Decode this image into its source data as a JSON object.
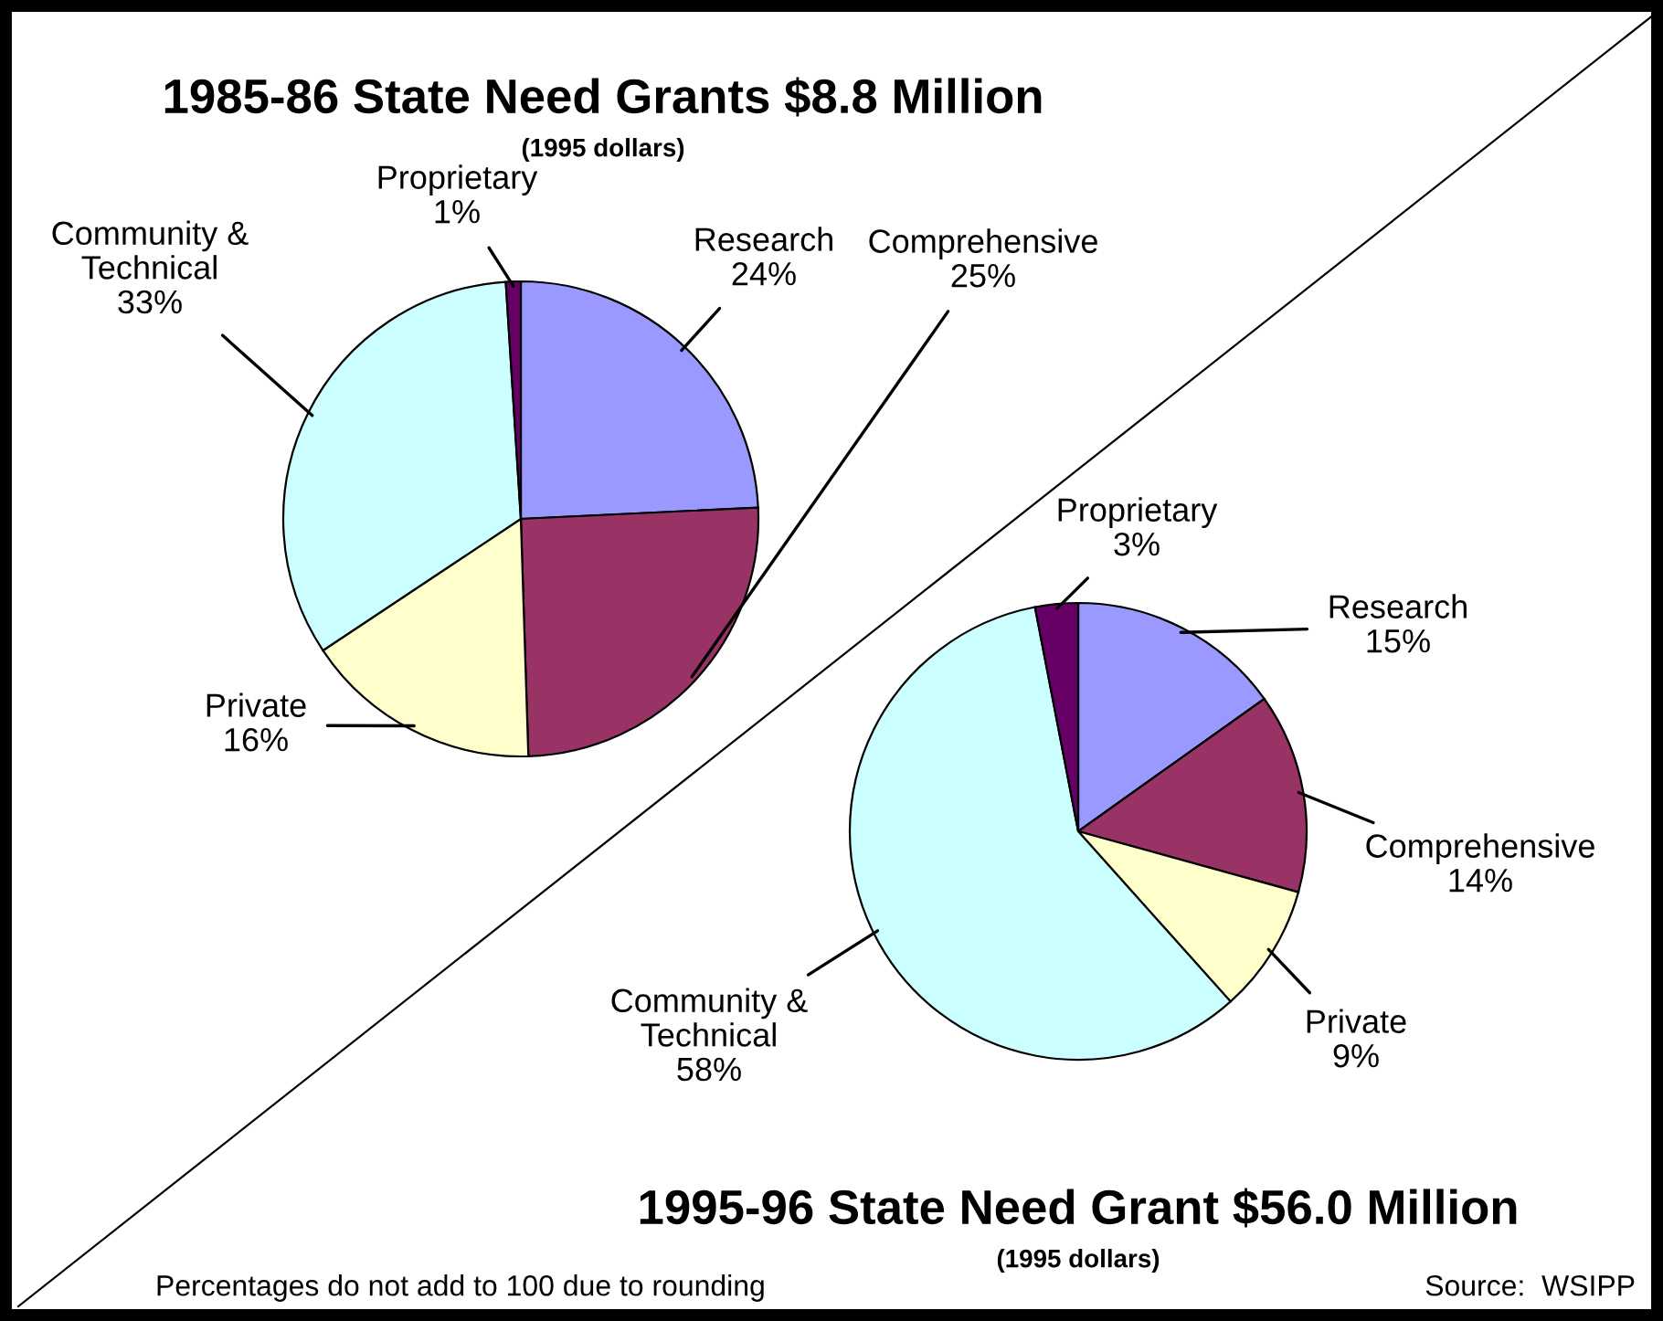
{
  "chart_data": [
    {
      "type": "pie",
      "title": "1985-86 State Need Grants $8.8 Million",
      "subtitle": "(1995 dollars)",
      "categories": [
        "Research",
        "Comprehensive",
        "Private",
        "Community &\nTechnical",
        "Proprietary"
      ],
      "values": [
        24,
        25,
        16,
        33,
        1
      ],
      "value_labels": [
        "24%",
        "25%",
        "16%",
        "33%",
        "1%"
      ],
      "colors": [
        "#9999ff",
        "#993366",
        "#ffffcc",
        "#ccffff",
        "#660066"
      ]
    },
    {
      "type": "pie",
      "title": "1995-96 State Need Grant $56.0 Million",
      "subtitle": "(1995 dollars)",
      "categories": [
        "Research",
        "Comprehensive",
        "Private",
        "Community &\nTechnical",
        "Proprietary"
      ],
      "values": [
        15,
        14,
        9,
        58,
        3
      ],
      "value_labels": [
        "15%",
        "14%",
        "9%",
        "58%",
        "3%"
      ],
      "colors": [
        "#9999ff",
        "#993366",
        "#ffffcc",
        "#ccffff",
        "#660066"
      ],
      "annotations": [
        "Percentages do not add to 100 due to rounding",
        "Source:  WSIPP"
      ]
    }
  ]
}
